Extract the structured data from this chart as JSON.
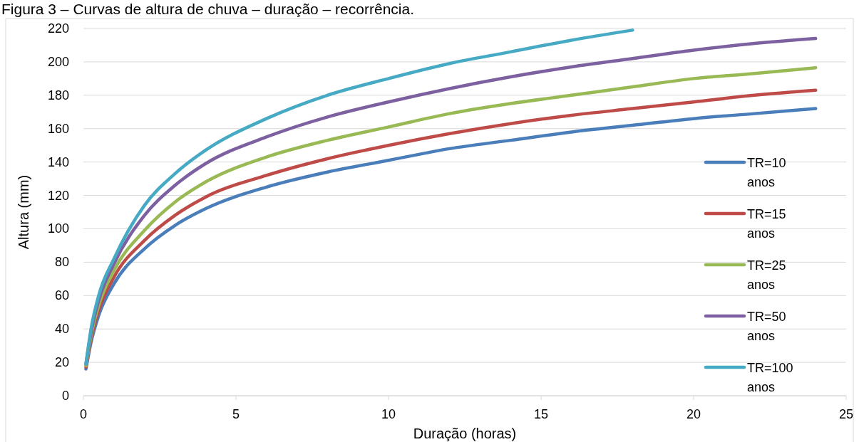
{
  "chart_data": {
    "type": "line",
    "title": "Figura 3 – Curvas de altura de chuva – duração – recorrência.",
    "xlabel": "Duração (horas)",
    "ylabel": "Altura (mm)",
    "xlim": [
      0,
      25
    ],
    "xticks": [
      0,
      5,
      10,
      15,
      20,
      25
    ],
    "ylim": [
      0,
      220
    ],
    "yticks": [
      0,
      20,
      40,
      60,
      80,
      100,
      120,
      140,
      160,
      180,
      200,
      220
    ],
    "grid": "y",
    "legend": "right",
    "marker": "none",
    "line_style": "solid",
    "x": [
      0.083,
      0.25,
      0.5,
      1,
      2,
      3,
      4,
      6,
      8,
      10,
      12,
      14,
      16,
      18,
      20,
      22,
      24
    ],
    "series": [
      {
        "name": "TR=10 anos",
        "color": "#4a7ebb",
        "values": [
          16,
          32,
          48,
          67,
          88,
          102,
          112,
          125,
          134,
          141,
          148,
          153,
          158,
          162,
          166,
          169,
          172
        ]
      },
      {
        "name": "TR=15 anos",
        "color": "#be4b48",
        "values": [
          17,
          34,
          51,
          71,
          93,
          108,
          119,
          132,
          142,
          150,
          157,
          163,
          168,
          172,
          176,
          180,
          183
        ]
      },
      {
        "name": "TR=25 anos",
        "color": "#98b954",
        "values": [
          18,
          36,
          54,
          75,
          99,
          116,
          128,
          143,
          153,
          161,
          169,
          175,
          180,
          185,
          190,
          193,
          196.5
        ]
      },
      {
        "name": "TR=50 anos",
        "color": "#7d60a0",
        "values": [
          19,
          38,
          57,
          79,
          108,
          126,
          139,
          155,
          167,
          176,
          184,
          191,
          197,
          202,
          207,
          211,
          214
        ]
      },
      {
        "name": "TR=100 anos",
        "color": "#46aac5",
        "values": [
          19,
          40,
          60,
          82,
          114,
          133,
          147,
          166,
          180,
          190,
          199,
          206,
          213,
          219,
          null,
          null,
          null
        ]
      }
    ]
  }
}
